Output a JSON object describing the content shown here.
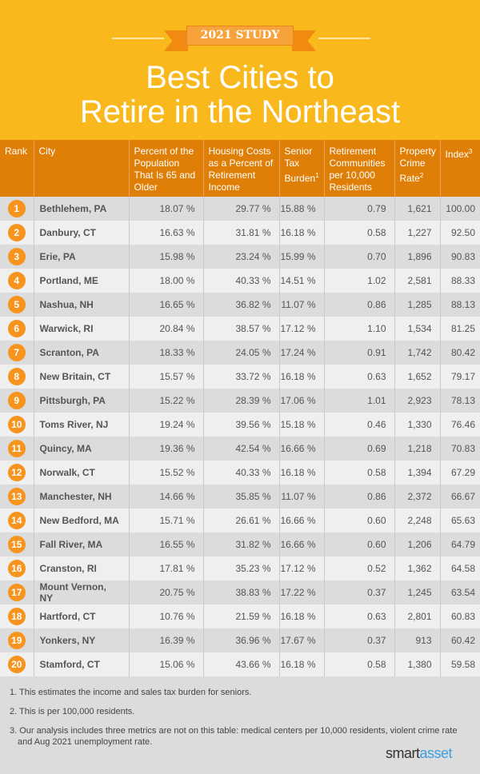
{
  "header": {
    "badge": "2021 STUDY",
    "title_line1": "Best Cities to",
    "title_line2": "Retire in the Northeast"
  },
  "chart_data": {
    "type": "table",
    "columns": [
      "Rank",
      "City",
      "Percent of the Population That Is 65 and Older",
      "Housing Costs as a Percent of Retirement Income",
      "Senior Tax Burden",
      "Retirement Communities per 10,000 Residents",
      "Property Crime Rate",
      "Index"
    ],
    "column_footnotes": {
      "Senior Tax Burden": "1",
      "Property Crime Rate": "2",
      "Index": "3"
    },
    "rows": [
      [
        "1",
        "Bethlehem, PA",
        "18.07 %",
        "29.77 %",
        "15.88 %",
        "0.79",
        "1,621",
        "100.00"
      ],
      [
        "2",
        "Danbury, CT",
        "16.63 %",
        "31.81 %",
        "16.18 %",
        "0.58",
        "1,227",
        "92.50"
      ],
      [
        "3",
        "Erie, PA",
        "15.98 %",
        "23.24 %",
        "15.99 %",
        "0.70",
        "1,896",
        "90.83"
      ],
      [
        "4",
        "Portland, ME",
        "18.00 %",
        "40.33 %",
        "14.51 %",
        "1.02",
        "2,581",
        "88.33"
      ],
      [
        "5",
        "Nashua, NH",
        "16.65 %",
        "36.82 %",
        "11.07 %",
        "0.86",
        "1,285",
        "88.13"
      ],
      [
        "6",
        "Warwick, RI",
        "20.84 %",
        "38.57 %",
        "17.12 %",
        "1.10",
        "1,534",
        "81.25"
      ],
      [
        "7",
        "Scranton, PA",
        "18.33 %",
        "24.05 %",
        "17.24 %",
        "0.91",
        "1,742",
        "80.42"
      ],
      [
        "8",
        "New Britain, CT",
        "15.57 %",
        "33.72 %",
        "16.18 %",
        "0.63",
        "1,652",
        "79.17"
      ],
      [
        "9",
        "Pittsburgh, PA",
        "15.22 %",
        "28.39 %",
        "17.06 %",
        "1.01",
        "2,923",
        "78.13"
      ],
      [
        "10",
        "Toms River, NJ",
        "19.24 %",
        "39.56 %",
        "15.18 %",
        "0.46",
        "1,330",
        "76.46"
      ],
      [
        "11",
        "Quincy, MA",
        "19.36 %",
        "42.54 %",
        "16.66 %",
        "0.69",
        "1,218",
        "70.83"
      ],
      [
        "12",
        "Norwalk, CT",
        "15.52 %",
        "40.33 %",
        "16.18 %",
        "0.58",
        "1,394",
        "67.29"
      ],
      [
        "13",
        "Manchester, NH",
        "14.66 %",
        "35.85 %",
        "11.07 %",
        "0.86",
        "2,372",
        "66.67"
      ],
      [
        "14",
        "New Bedford, MA",
        "15.71 %",
        "26.61 %",
        "16.66 %",
        "0.60",
        "2,248",
        "65.63"
      ],
      [
        "15",
        "Fall River, MA",
        "16.55 %",
        "31.82 %",
        "16.66 %",
        "0.60",
        "1,206",
        "64.79"
      ],
      [
        "16",
        "Cranston, RI",
        "17.81 %",
        "35.23 %",
        "17.12 %",
        "0.52",
        "1,362",
        "64.58"
      ],
      [
        "17",
        "Mount Vernon, NY",
        "20.75 %",
        "38.83 %",
        "17.22 %",
        "0.37",
        "1,245",
        "63.54"
      ],
      [
        "18",
        "Hartford, CT",
        "10.76 %",
        "21.59 %",
        "16.18 %",
        "0.63",
        "2,801",
        "60.83"
      ],
      [
        "19",
        "Yonkers, NY",
        "16.39 %",
        "36.96 %",
        "17.67 %",
        "0.37",
        "913",
        "60.42"
      ],
      [
        "20",
        "Stamford, CT",
        "15.06 %",
        "43.66 %",
        "16.18 %",
        "0.58",
        "1,380",
        "59.58"
      ]
    ]
  },
  "footnotes": [
    "1. This estimates the income and sales tax burden for seniors.",
    "2. This is per 100,000 residents.",
    "3. Our analysis includes three metrics are not on this table: medical centers per 10,000 residents, violent crime rate and Aug 2021 unemployment rate."
  ],
  "logo": {
    "part1": "smart",
    "part2": "asset"
  },
  "colors": {
    "hero": "#f9b91c",
    "header": "#e07f07",
    "rank_circle": "#f7941d",
    "logo_accent": "#3aa0e0"
  }
}
